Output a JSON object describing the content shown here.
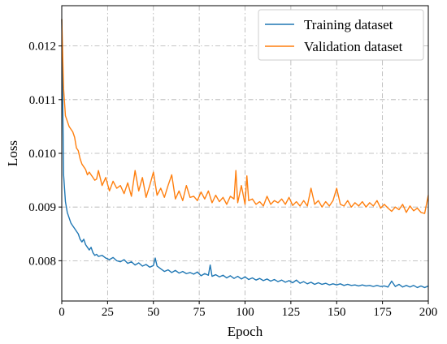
{
  "chart_data": {
    "type": "line",
    "xlabel": "Epoch",
    "ylabel": "Loss",
    "xlim": [
      0,
      200
    ],
    "ylim": [
      0.00725,
      0.01275
    ],
    "xticks": [
      0,
      25,
      50,
      75,
      100,
      125,
      150,
      175,
      200
    ],
    "xtick_labels": [
      "0",
      "25",
      "50",
      "75",
      "100",
      "125",
      "150",
      "175",
      "200"
    ],
    "yticks": [
      0.008,
      0.009,
      0.01,
      0.011,
      0.012
    ],
    "ytick_labels": [
      "0.008",
      "0.009",
      "0.010",
      "0.011",
      "0.012"
    ],
    "grid": "dash-dot",
    "legend_position": "top-right",
    "series": [
      {
        "name": "Training dataset",
        "color": "#1f77b4",
        "x": [
          0,
          1,
          2,
          3,
          4,
          5,
          6,
          7,
          8,
          9,
          10,
          11,
          12,
          13,
          14,
          15,
          16,
          17,
          18,
          19,
          20,
          22,
          24,
          26,
          28,
          30,
          32,
          34,
          36,
          38,
          40,
          42,
          44,
          46,
          48,
          50,
          51,
          52,
          54,
          56,
          58,
          60,
          62,
          64,
          66,
          68,
          70,
          72,
          74,
          76,
          78,
          80,
          81,
          82,
          84,
          86,
          88,
          90,
          92,
          94,
          96,
          98,
          100,
          102,
          104,
          106,
          108,
          110,
          112,
          114,
          116,
          118,
          120,
          122,
          124,
          126,
          128,
          130,
          132,
          134,
          136,
          138,
          140,
          142,
          144,
          146,
          148,
          150,
          152,
          154,
          156,
          158,
          160,
          162,
          164,
          166,
          168,
          170,
          172,
          174,
          176,
          178,
          180,
          182,
          184,
          186,
          188,
          190,
          192,
          194,
          196,
          198,
          200
        ],
        "values": [
          0.0125,
          0.0096,
          0.0091,
          0.0089,
          0.0088,
          0.0087,
          0.00865,
          0.0086,
          0.00855,
          0.0085,
          0.0084,
          0.00835,
          0.0084,
          0.0083,
          0.00825,
          0.0082,
          0.00825,
          0.00815,
          0.0081,
          0.00812,
          0.00808,
          0.0081,
          0.00805,
          0.00802,
          0.00806,
          0.008,
          0.00798,
          0.00802,
          0.00795,
          0.00798,
          0.00792,
          0.00796,
          0.0079,
          0.00793,
          0.00788,
          0.00791,
          0.00805,
          0.0079,
          0.00785,
          0.0078,
          0.00783,
          0.00778,
          0.00782,
          0.00777,
          0.0078,
          0.00776,
          0.00778,
          0.00775,
          0.00779,
          0.00772,
          0.00776,
          0.00773,
          0.00792,
          0.00771,
          0.00774,
          0.0077,
          0.00773,
          0.00768,
          0.00772,
          0.00767,
          0.00771,
          0.00766,
          0.0077,
          0.00765,
          0.00768,
          0.00764,
          0.00767,
          0.00763,
          0.00766,
          0.00762,
          0.00765,
          0.00761,
          0.00764,
          0.0076,
          0.00763,
          0.00759,
          0.00764,
          0.00758,
          0.00761,
          0.00757,
          0.0076,
          0.00756,
          0.00759,
          0.00756,
          0.00758,
          0.00755,
          0.00757,
          0.00755,
          0.00757,
          0.00754,
          0.00756,
          0.00754,
          0.00755,
          0.00753,
          0.00755,
          0.00753,
          0.00754,
          0.00752,
          0.00754,
          0.00752,
          0.00753,
          0.00751,
          0.00762,
          0.00752,
          0.00756,
          0.00751,
          0.00754,
          0.00751,
          0.00754,
          0.0075,
          0.00753,
          0.0075,
          0.00753
        ]
      },
      {
        "name": "Validation dataset",
        "color": "#ff7f0e",
        "x": [
          0,
          1,
          2,
          3,
          4,
          5,
          6,
          7,
          8,
          9,
          10,
          11,
          12,
          13,
          14,
          15,
          16,
          17,
          18,
          19,
          20,
          22,
          24,
          26,
          28,
          30,
          32,
          34,
          36,
          38,
          40,
          42,
          44,
          46,
          48,
          50,
          52,
          54,
          56,
          58,
          60,
          62,
          64,
          66,
          68,
          70,
          72,
          74,
          76,
          78,
          80,
          82,
          84,
          86,
          88,
          90,
          92,
          94,
          95,
          96,
          98,
          100,
          101,
          102,
          104,
          106,
          108,
          110,
          112,
          114,
          116,
          118,
          120,
          122,
          124,
          126,
          128,
          130,
          132,
          134,
          136,
          138,
          140,
          142,
          144,
          146,
          148,
          150,
          152,
          154,
          156,
          158,
          160,
          162,
          164,
          166,
          168,
          170,
          172,
          174,
          176,
          178,
          180,
          182,
          184,
          186,
          188,
          190,
          192,
          194,
          196,
          198,
          200
        ],
        "values": [
          0.0125,
          0.0112,
          0.0107,
          0.0106,
          0.0105,
          0.01045,
          0.0104,
          0.0103,
          0.0101,
          0.01005,
          0.0099,
          0.0098,
          0.00975,
          0.0097,
          0.0096,
          0.00965,
          0.0096,
          0.00955,
          0.0095,
          0.00952,
          0.00968,
          0.0094,
          0.00955,
          0.0093,
          0.00948,
          0.00935,
          0.0094,
          0.00925,
          0.00945,
          0.0092,
          0.00968,
          0.0093,
          0.00955,
          0.00918,
          0.0094,
          0.00965,
          0.00922,
          0.00935,
          0.00918,
          0.0094,
          0.0096,
          0.00915,
          0.0093,
          0.00912,
          0.0094,
          0.00918,
          0.0092,
          0.00912,
          0.00928,
          0.00915,
          0.0093,
          0.00908,
          0.00922,
          0.0091,
          0.00918,
          0.00905,
          0.0092,
          0.00915,
          0.00968,
          0.00908,
          0.0094,
          0.00905,
          0.00958,
          0.00912,
          0.00915,
          0.00905,
          0.0091,
          0.00902,
          0.0092,
          0.00905,
          0.00912,
          0.00908,
          0.00915,
          0.00905,
          0.00918,
          0.00903,
          0.0091,
          0.00902,
          0.00912,
          0.00902,
          0.00935,
          0.00905,
          0.00912,
          0.009,
          0.0091,
          0.00902,
          0.00912,
          0.00935,
          0.00905,
          0.00902,
          0.00912,
          0.009,
          0.00908,
          0.00902,
          0.0091,
          0.009,
          0.00908,
          0.00902,
          0.00912,
          0.00898,
          0.00905,
          0.00898,
          0.00892,
          0.009,
          0.00895,
          0.00905,
          0.0089,
          0.00902,
          0.00893,
          0.00898,
          0.0089,
          0.00888,
          0.00922
        ]
      }
    ]
  }
}
